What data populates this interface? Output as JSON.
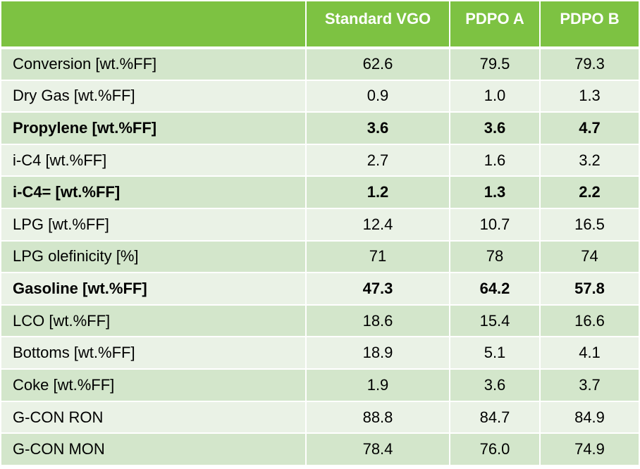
{
  "header": {
    "corner": "",
    "col1": "Standard VGO",
    "col2": "PDPO A",
    "col3": "PDPO B"
  },
  "rows": [
    {
      "label": "Conversion [wt.%FF]",
      "v1": "62.6",
      "v2": "79.5",
      "v3": "79.3",
      "bold": false
    },
    {
      "label": "Dry Gas [wt.%FF]",
      "v1": "0.9",
      "v2": "1.0",
      "v3": "1.3",
      "bold": false
    },
    {
      "label": "Propylene [wt.%FF]",
      "v1": "3.6",
      "v2": "3.6",
      "v3": "4.7",
      "bold": true
    },
    {
      "label": "i-C4 [wt.%FF]",
      "v1": "2.7",
      "v2": "1.6",
      "v3": "3.2",
      "bold": false
    },
    {
      "label": "i-C4= [wt.%FF]",
      "v1": "1.2",
      "v2": "1.3",
      "v3": "2.2",
      "bold": true
    },
    {
      "label": "LPG [wt.%FF]",
      "v1": "12.4",
      "v2": "10.7",
      "v3": "16.5",
      "bold": false
    },
    {
      "label": "LPG olefinicity [%]",
      "v1": "71",
      "v2": "78",
      "v3": "74",
      "bold": false
    },
    {
      "label": "Gasoline [wt.%FF]",
      "v1": "47.3",
      "v2": "64.2",
      "v3": "57.8",
      "bold": true
    },
    {
      "label": "LCO [wt.%FF]",
      "v1": "18.6",
      "v2": "15.4",
      "v3": "16.6",
      "bold": false
    },
    {
      "label": "Bottoms [wt.%FF]",
      "v1": "18.9",
      "v2": "5.1",
      "v3": "4.1",
      "bold": false
    },
    {
      "label": "Coke [wt.%FF]",
      "v1": "1.9",
      "v2": "3.6",
      "v3": "3.7",
      "bold": false
    },
    {
      "label": "G-CON RON",
      "v1": "88.8",
      "v2": "84.7",
      "v3": "84.9",
      "bold": false
    },
    {
      "label": "G-CON MON",
      "v1": "78.4",
      "v2": "76.0",
      "v3": "74.9",
      "bold": false
    }
  ],
  "colors": {
    "header_bg": "#7dc242",
    "row_odd_bg": "#d3e6cb",
    "row_even_bg": "#eaf2e6"
  }
}
